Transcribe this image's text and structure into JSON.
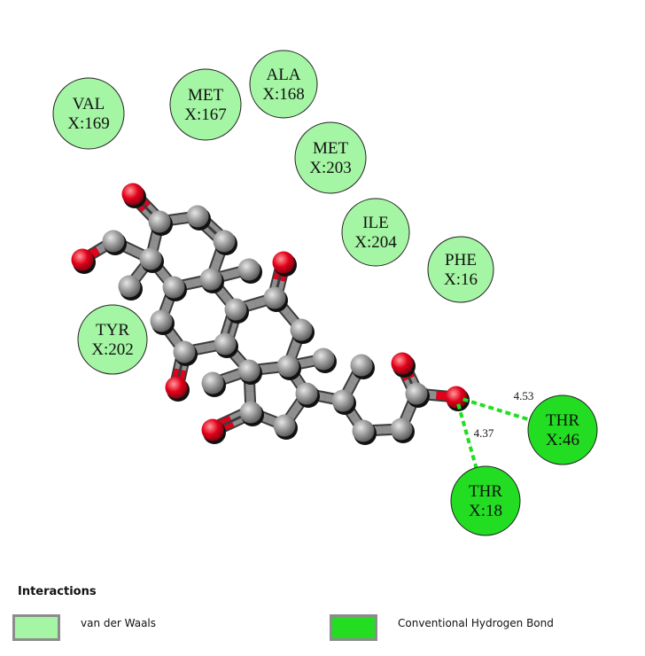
{
  "colors": {
    "vdw": "#a4f5a4",
    "hbond": "#22dd22",
    "hbond_line": "#22dd22",
    "carbon": "#8f8f8f",
    "oxygen": "#e3001b"
  },
  "residues": [
    {
      "id": "val169",
      "name": "VAL",
      "chain": "X:169",
      "type": "vdw"
    },
    {
      "id": "met167",
      "name": "MET",
      "chain": "X:167",
      "type": "vdw"
    },
    {
      "id": "ala168",
      "name": "ALA",
      "chain": "X:168",
      "type": "vdw"
    },
    {
      "id": "met203",
      "name": "MET",
      "chain": "X:203",
      "type": "vdw"
    },
    {
      "id": "ile204",
      "name": "ILE",
      "chain": "X:204",
      "type": "vdw"
    },
    {
      "id": "phe16",
      "name": "PHE",
      "chain": "X:16",
      "type": "vdw"
    },
    {
      "id": "tyr202",
      "name": "TYR",
      "chain": "X:202",
      "type": "vdw"
    },
    {
      "id": "thr46",
      "name": "THR",
      "chain": "X:46",
      "type": "hbond"
    },
    {
      "id": "thr18",
      "name": "THR",
      "chain": "X:18",
      "type": "hbond"
    }
  ],
  "hbonds": [
    {
      "residue": "thr46",
      "distance": "4.53"
    },
    {
      "residue": "thr18",
      "distance": "4.37"
    }
  ],
  "legend": {
    "title": "Interactions",
    "items": [
      {
        "type": "vdw",
        "label": "van der Waals"
      },
      {
        "type": "hbond",
        "label": "Conventional Hydrogen Bond"
      }
    ]
  }
}
